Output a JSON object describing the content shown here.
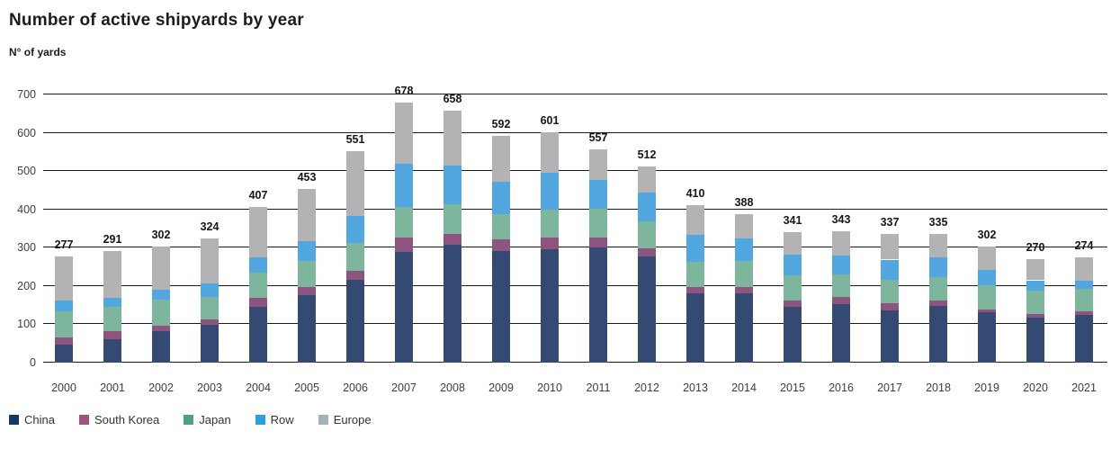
{
  "header": {
    "title": "Number of active shipyards by year",
    "ylabel": "N° of yards"
  },
  "colors": {
    "grid": "#1b1b1b",
    "title_text": "#1c1c1c",
    "axis_text": "#3e3e3e",
    "total_text": "#161616"
  },
  "chart_data": {
    "type": "bar",
    "stacked": true,
    "title": "Number of active shipyards by year",
    "xlabel": "",
    "ylabel": "N° of yards",
    "ylim": [
      0,
      700
    ],
    "yticks": [
      0,
      100,
      200,
      300,
      400,
      500,
      600,
      700
    ],
    "grid": true,
    "legend_position": "bottom",
    "categories": [
      "2000",
      "2001",
      "2002",
      "2003",
      "2004",
      "2005",
      "2006",
      "2007",
      "2008",
      "2009",
      "2010",
      "2011",
      "2012",
      "2013",
      "2014",
      "2015",
      "2016",
      "2017",
      "2018",
      "2019",
      "2020",
      "2021"
    ],
    "totals": [
      277,
      291,
      302,
      324,
      407,
      453,
      551,
      678,
      658,
      592,
      601,
      557,
      512,
      410,
      388,
      341,
      343,
      337,
      335,
      302,
      270,
      274
    ],
    "series": [
      {
        "name": "China",
        "bar_color": "#344a72",
        "swatch_color": "#12395f",
        "values": [
          48,
          60,
          82,
          99,
          145,
          176,
          215,
          290,
          308,
          291,
          296,
          300,
          278,
          181,
          182,
          145,
          152,
          137,
          148,
          132,
          118,
          124
        ]
      },
      {
        "name": "South Korea",
        "bar_color": "#8e5480",
        "swatch_color": "#a3537f",
        "values": [
          17,
          23,
          14,
          14,
          24,
          21,
          25,
          37,
          29,
          30,
          30,
          26,
          21,
          16,
          15,
          18,
          19,
          18,
          13,
          7,
          8,
          10
        ]
      },
      {
        "name": "Japan",
        "bar_color": "#7eb69d",
        "swatch_color": "#4ba183",
        "values": [
          69,
          63,
          68,
          59,
          65,
          68,
          73,
          80,
          77,
          66,
          74,
          75,
          69,
          65,
          69,
          64,
          60,
          62,
          62,
          62,
          61,
          58
        ]
      },
      {
        "name": "Row",
        "bar_color": "#52a7e0",
        "swatch_color": "#2aa0de",
        "values": [
          27,
          24,
          27,
          35,
          41,
          53,
          71,
          111,
          101,
          85,
          95,
          75,
          75,
          72,
          58,
          55,
          48,
          52,
          53,
          41,
          28,
          22
        ]
      },
      {
        "name": "Europe",
        "bar_color": "#b3b3b6",
        "swatch_color": "#a2b2ba",
        "values": [
          116,
          121,
          111,
          117,
          132,
          135,
          167,
          160,
          143,
          120,
          106,
          81,
          69,
          76,
          64,
          59,
          64,
          68,
          59,
          60,
          55,
          60
        ]
      }
    ]
  }
}
